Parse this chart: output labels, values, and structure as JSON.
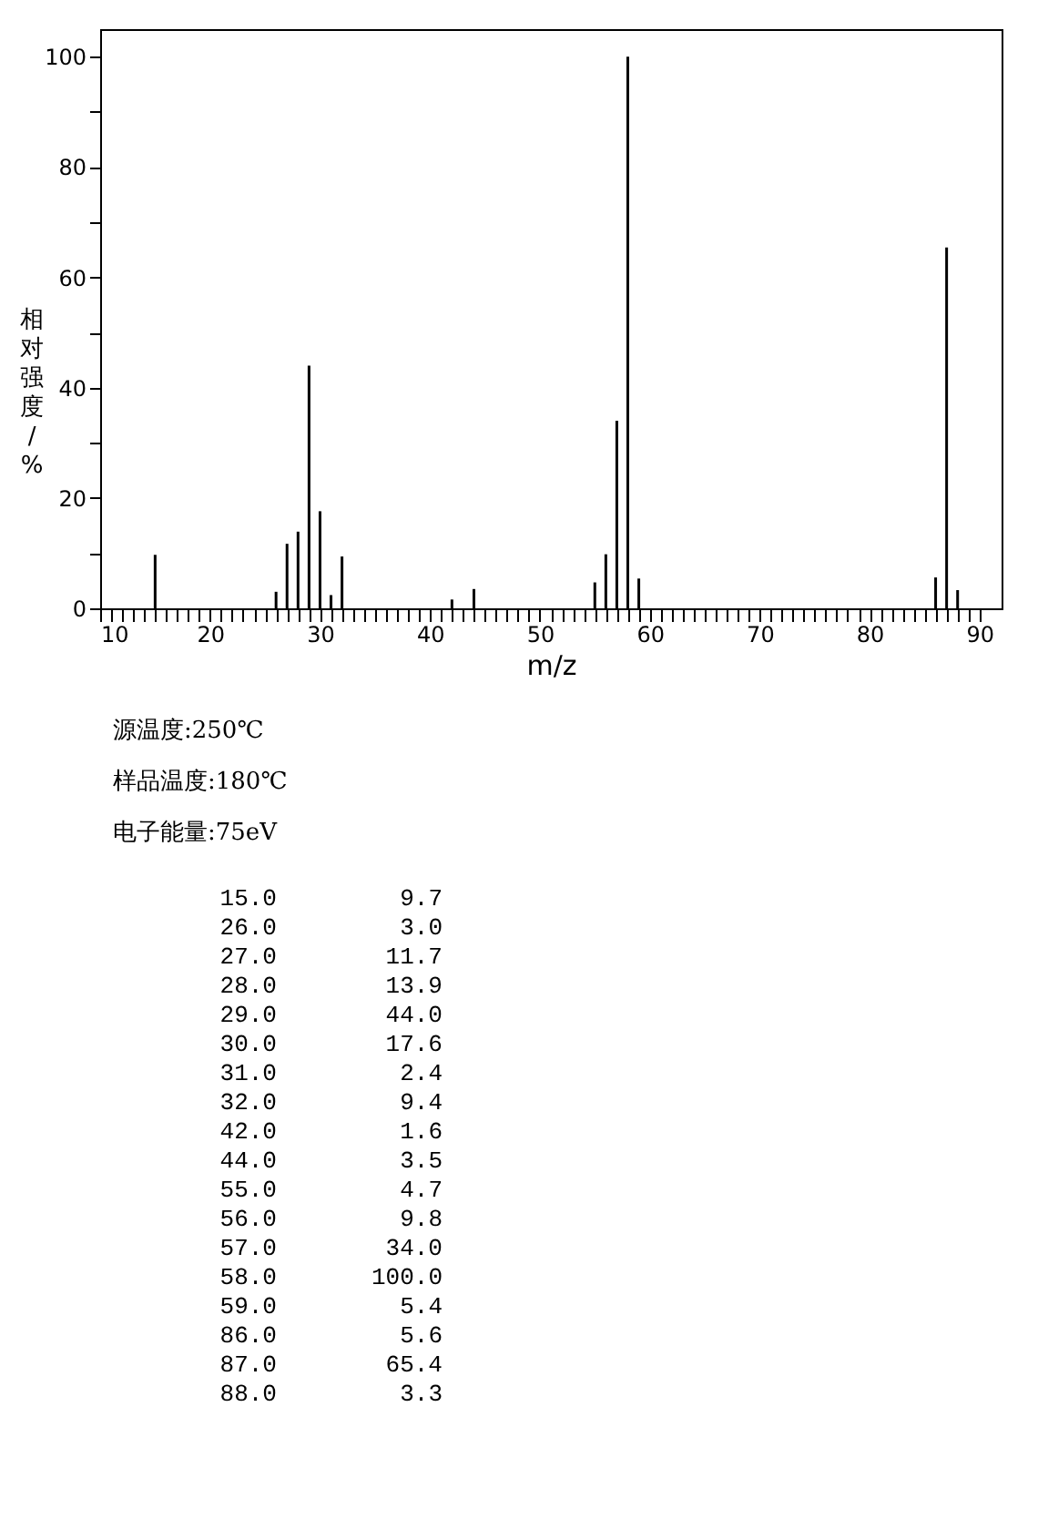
{
  "chart_data": {
    "type": "bar",
    "x": [
      15.0,
      26.0,
      27.0,
      28.0,
      29.0,
      30.0,
      31.0,
      32.0,
      42.0,
      44.0,
      55.0,
      56.0,
      57.0,
      58.0,
      59.0,
      86.0,
      87.0,
      88.0
    ],
    "values": [
      9.7,
      3.0,
      11.7,
      13.9,
      44.0,
      17.6,
      2.4,
      9.4,
      1.6,
      3.5,
      4.7,
      9.8,
      34.0,
      100.0,
      5.4,
      5.6,
      65.4,
      3.3
    ],
    "color": "#000000",
    "xlabel": "m/z",
    "ylabel": "相对强度/%",
    "xlim": [
      10,
      92
    ],
    "ylim": [
      0,
      105
    ],
    "xticks": [
      10,
      {
        "value": 11,
        "label": null
      },
      {
        "value": 12,
        "label": null
      },
      {
        "value": 13,
        "label": null
      },
      {
        "value": 14,
        "label": null
      },
      {
        "value": 15,
        "label": null
      },
      {
        "value": 16,
        "label": null
      },
      {
        "value": 17,
        "label": null
      },
      {
        "value": 18,
        "label": null
      },
      {
        "value": 19,
        "label": null
      },
      20,
      {
        "value": 21,
        "label": null
      },
      {
        "value": 22,
        "label": null
      },
      {
        "value": 23,
        "label": null
      },
      {
        "value": 24,
        "label": null
      },
      {
        "value": 25,
        "label": null
      },
      {
        "value": 26,
        "label": null
      },
      {
        "value": 27,
        "label": null
      },
      {
        "value": 28,
        "label": null
      },
      {
        "value": 29,
        "label": null
      },
      30,
      {
        "value": 31,
        "label": null
      },
      {
        "value": 32,
        "label": null
      },
      {
        "value": 33,
        "label": null
      },
      {
        "value": 34,
        "label": null
      },
      {
        "value": 35,
        "label": null
      },
      {
        "value": 36,
        "label": null
      },
      {
        "value": 37,
        "label": null
      },
      {
        "value": 38,
        "label": null
      },
      {
        "value": 39,
        "label": null
      },
      40,
      {
        "value": 41,
        "label": null
      },
      {
        "value": 42,
        "label": null
      },
      {
        "value": 43,
        "label": null
      },
      {
        "value": 44,
        "label": null
      },
      {
        "value": 45,
        "label": null
      },
      {
        "value": 46,
        "label": null
      },
      {
        "value": 47,
        "label": null
      },
      {
        "value": 48,
        "label": null
      },
      {
        "value": 49,
        "label": null
      },
      50,
      {
        "value": 51,
        "label": null
      },
      {
        "value": 52,
        "label": null
      },
      {
        "value": 53,
        "label": null
      },
      {
        "value": 54,
        "label": null
      },
      {
        "value": 55,
        "label": null
      },
      {
        "value": 56,
        "label": null
      },
      {
        "value": 57,
        "label": null
      },
      {
        "value": 58,
        "label": null
      },
      {
        "value": 59,
        "label": null
      },
      60,
      {
        "value": 61,
        "label": null
      },
      {
        "value": 62,
        "label": null
      },
      {
        "value": 63,
        "label": null
      },
      {
        "value": 64,
        "label": null
      },
      {
        "value": 65,
        "label": null
      },
      {
        "value": 66,
        "label": null
      },
      {
        "value": 67,
        "label": null
      },
      {
        "value": 68,
        "label": null
      },
      {
        "value": 69,
        "label": null
      },
      70,
      {
        "value": 71,
        "label": null
      },
      {
        "value": 72,
        "label": null
      },
      {
        "value": 73,
        "label": null
      },
      {
        "value": 74,
        "label": null
      },
      {
        "value": 75,
        "label": null
      },
      {
        "value": 76,
        "label": null
      },
      {
        "value": 77,
        "label": null
      },
      {
        "value": 78,
        "label": null
      },
      {
        "value": 79,
        "label": null
      },
      80,
      {
        "value": 81,
        "label": null
      },
      {
        "value": 82,
        "label": null
      },
      {
        "value": 83,
        "label": null
      },
      {
        "value": 84,
        "label": null
      },
      {
        "value": 85,
        "label": null
      },
      {
        "value": 86,
        "label": null
      },
      {
        "value": 87,
        "label": null
      },
      {
        "value": 88,
        "label": null
      },
      {
        "value": 89,
        "label": null
      },
      90
    ],
    "yticks": [
      0,
      {
        "value": 10,
        "label": null
      },
      20,
      {
        "value": 30,
        "label": null
      },
      40,
      {
        "value": 50,
        "label": null
      },
      60,
      {
        "value": 70,
        "label": null
      },
      80,
      {
        "value": 90,
        "label": null
      },
      100
    ],
    "grid": false,
    "annotations": [
      "源温度:250℃",
      "样品温度:180℃",
      "电子能量:75eV",
      "15.0",
      "9.7",
      "26.0",
      "3.0",
      "27.0",
      "11.7",
      "28.0",
      "13.9",
      "29.0",
      "44.0",
      "30.0",
      "17.6",
      "31.0",
      "2.4",
      "32.0",
      "9.4",
      "42.0",
      "1.6",
      "44.0",
      "3.5",
      "55.0",
      "4.7",
      "56.0",
      "9.8",
      "57.0",
      "34.0",
      "58.0",
      "100.0",
      "59.0",
      "5.4",
      "86.0",
      "5.6",
      "87.0",
      "65.4",
      "88.0",
      "3.3"
    ]
  }
}
